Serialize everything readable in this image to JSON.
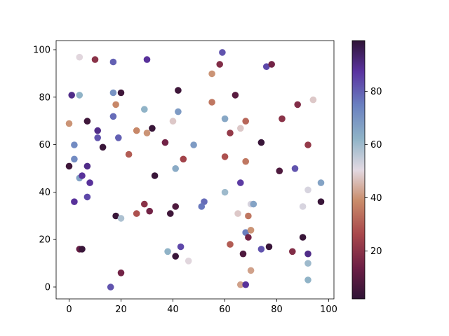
{
  "chart_data": {
    "type": "scatter",
    "title": "",
    "xlabel": "",
    "ylabel": "",
    "xlim": [
      -5,
      102
    ],
    "ylim": [
      -5,
      104
    ],
    "xticks": [
      "0",
      "20",
      "40",
      "60",
      "80",
      "100"
    ],
    "yticks": [
      "0",
      "20",
      "40",
      "60",
      "80",
      "100"
    ],
    "grid": false,
    "colormap": "twilight_shifted",
    "color_range": [
      2,
      99
    ],
    "colorbar_ticks": [
      "20",
      "40",
      "60",
      "80"
    ],
    "points": [
      {
        "x": 4,
        "y": 97,
        "c": 50
      },
      {
        "x": 10,
        "y": 96,
        "c": 20
      },
      {
        "x": 17,
        "y": 95,
        "c": 80
      },
      {
        "x": 30,
        "y": 96,
        "c": 88
      },
      {
        "x": 59,
        "y": 99,
        "c": 82
      },
      {
        "x": 58,
        "y": 94,
        "c": 18
      },
      {
        "x": 55,
        "y": 90,
        "c": 40
      },
      {
        "x": 76,
        "y": 93,
        "c": 84
      },
      {
        "x": 78,
        "y": 94,
        "c": 15
      },
      {
        "x": 1,
        "y": 81,
        "c": 90
      },
      {
        "x": 4,
        "y": 81,
        "c": 62
      },
      {
        "x": 17,
        "y": 82,
        "c": 70
      },
      {
        "x": 20,
        "y": 82,
        "c": 5
      },
      {
        "x": 42,
        "y": 83,
        "c": 5
      },
      {
        "x": 64,
        "y": 81,
        "c": 10
      },
      {
        "x": 94,
        "y": 79,
        "c": 48
      },
      {
        "x": 18,
        "y": 77,
        "c": 38
      },
      {
        "x": 55,
        "y": 78,
        "c": 35
      },
      {
        "x": 88,
        "y": 77,
        "c": 18
      },
      {
        "x": 29,
        "y": 75,
        "c": 62
      },
      {
        "x": 42,
        "y": 74,
        "c": 68
      },
      {
        "x": 17,
        "y": 72,
        "c": 78
      },
      {
        "x": 60,
        "y": 71,
        "c": 65
      },
      {
        "x": 82,
        "y": 71,
        "c": 20
      },
      {
        "x": 0,
        "y": 69,
        "c": 40
      },
      {
        "x": 7,
        "y": 70,
        "c": 5
      },
      {
        "x": 40,
        "y": 70,
        "c": 48
      },
      {
        "x": 68,
        "y": 70,
        "c": 32
      },
      {
        "x": 11,
        "y": 66,
        "c": 90
      },
      {
        "x": 26,
        "y": 66,
        "c": 38
      },
      {
        "x": 30,
        "y": 65,
        "c": 40
      },
      {
        "x": 32,
        "y": 67,
        "c": 4
      },
      {
        "x": 62,
        "y": 65,
        "c": 22
      },
      {
        "x": 66,
        "y": 67,
        "c": 48
      },
      {
        "x": 19,
        "y": 63,
        "c": 80
      },
      {
        "x": 11,
        "y": 63,
        "c": 82
      },
      {
        "x": 2,
        "y": 60,
        "c": 72
      },
      {
        "x": 13,
        "y": 59,
        "c": 4
      },
      {
        "x": 37,
        "y": 61,
        "c": 15
      },
      {
        "x": 48,
        "y": 60,
        "c": 68
      },
      {
        "x": 74,
        "y": 61,
        "c": 4
      },
      {
        "x": 92,
        "y": 60,
        "c": 22
      },
      {
        "x": 2,
        "y": 54,
        "c": 72
      },
      {
        "x": 23,
        "y": 56,
        "c": 30
      },
      {
        "x": 44,
        "y": 54,
        "c": 25
      },
      {
        "x": 60,
        "y": 55,
        "c": 28
      },
      {
        "x": 68,
        "y": 53,
        "c": 35
      },
      {
        "x": 0,
        "y": 51,
        "c": 5
      },
      {
        "x": 7,
        "y": 51,
        "c": 90
      },
      {
        "x": 41,
        "y": 50,
        "c": 64
      },
      {
        "x": 81,
        "y": 49,
        "c": 8
      },
      {
        "x": 87,
        "y": 50,
        "c": 82
      },
      {
        "x": 4,
        "y": 46,
        "c": 66
      },
      {
        "x": 5,
        "y": 47,
        "c": 88
      },
      {
        "x": 8,
        "y": 44,
        "c": 88
      },
      {
        "x": 33,
        "y": 47,
        "c": 4
      },
      {
        "x": 60,
        "y": 40,
        "c": 60
      },
      {
        "x": 66,
        "y": 44,
        "c": 86
      },
      {
        "x": 92,
        "y": 41,
        "c": 52
      },
      {
        "x": 97,
        "y": 44,
        "c": 66
      },
      {
        "x": 2,
        "y": 36,
        "c": 88
      },
      {
        "x": 7,
        "y": 38,
        "c": 84
      },
      {
        "x": 52,
        "y": 36,
        "c": 78
      },
      {
        "x": 51,
        "y": 34,
        "c": 76
      },
      {
        "x": 70,
        "y": 35,
        "c": 52
      },
      {
        "x": 71,
        "y": 35,
        "c": 66
      },
      {
        "x": 90,
        "y": 34,
        "c": 52
      },
      {
        "x": 97,
        "y": 36,
        "c": 4
      },
      {
        "x": 29,
        "y": 35,
        "c": 20
      },
      {
        "x": 31,
        "y": 32,
        "c": 15
      },
      {
        "x": 39,
        "y": 31,
        "c": 5
      },
      {
        "x": 41,
        "y": 34,
        "c": 8
      },
      {
        "x": 26,
        "y": 31,
        "c": 28
      },
      {
        "x": 18,
        "y": 30,
        "c": 4
      },
      {
        "x": 20,
        "y": 29,
        "c": 58
      },
      {
        "x": 65,
        "y": 31,
        "c": 48
      },
      {
        "x": 69,
        "y": 30,
        "c": 35
      },
      {
        "x": 68,
        "y": 23,
        "c": 75
      },
      {
        "x": 70,
        "y": 24,
        "c": 40
      },
      {
        "x": 69,
        "y": 21,
        "c": 15
      },
      {
        "x": 90,
        "y": 21,
        "c": 4
      },
      {
        "x": 62,
        "y": 18,
        "c": 30
      },
      {
        "x": 43,
        "y": 17,
        "c": 84
      },
      {
        "x": 74,
        "y": 16,
        "c": 82
      },
      {
        "x": 77,
        "y": 17,
        "c": 4
      },
      {
        "x": 4,
        "y": 16,
        "c": 12
      },
      {
        "x": 5,
        "y": 16,
        "c": 4
      },
      {
        "x": 38,
        "y": 15,
        "c": 62
      },
      {
        "x": 41,
        "y": 13,
        "c": 4
      },
      {
        "x": 67,
        "y": 14,
        "c": 8
      },
      {
        "x": 86,
        "y": 15,
        "c": 18
      },
      {
        "x": 92,
        "y": 14,
        "c": 90
      },
      {
        "x": 46,
        "y": 11,
        "c": 50
      },
      {
        "x": 92,
        "y": 10,
        "c": 60
      },
      {
        "x": 20,
        "y": 6,
        "c": 15
      },
      {
        "x": 70,
        "y": 7,
        "c": 42
      },
      {
        "x": 92,
        "y": 3,
        "c": 62
      },
      {
        "x": 16,
        "y": 0,
        "c": 82
      },
      {
        "x": 66,
        "y": 1,
        "c": 42
      },
      {
        "x": 68,
        "y": 1,
        "c": 88
      }
    ]
  }
}
